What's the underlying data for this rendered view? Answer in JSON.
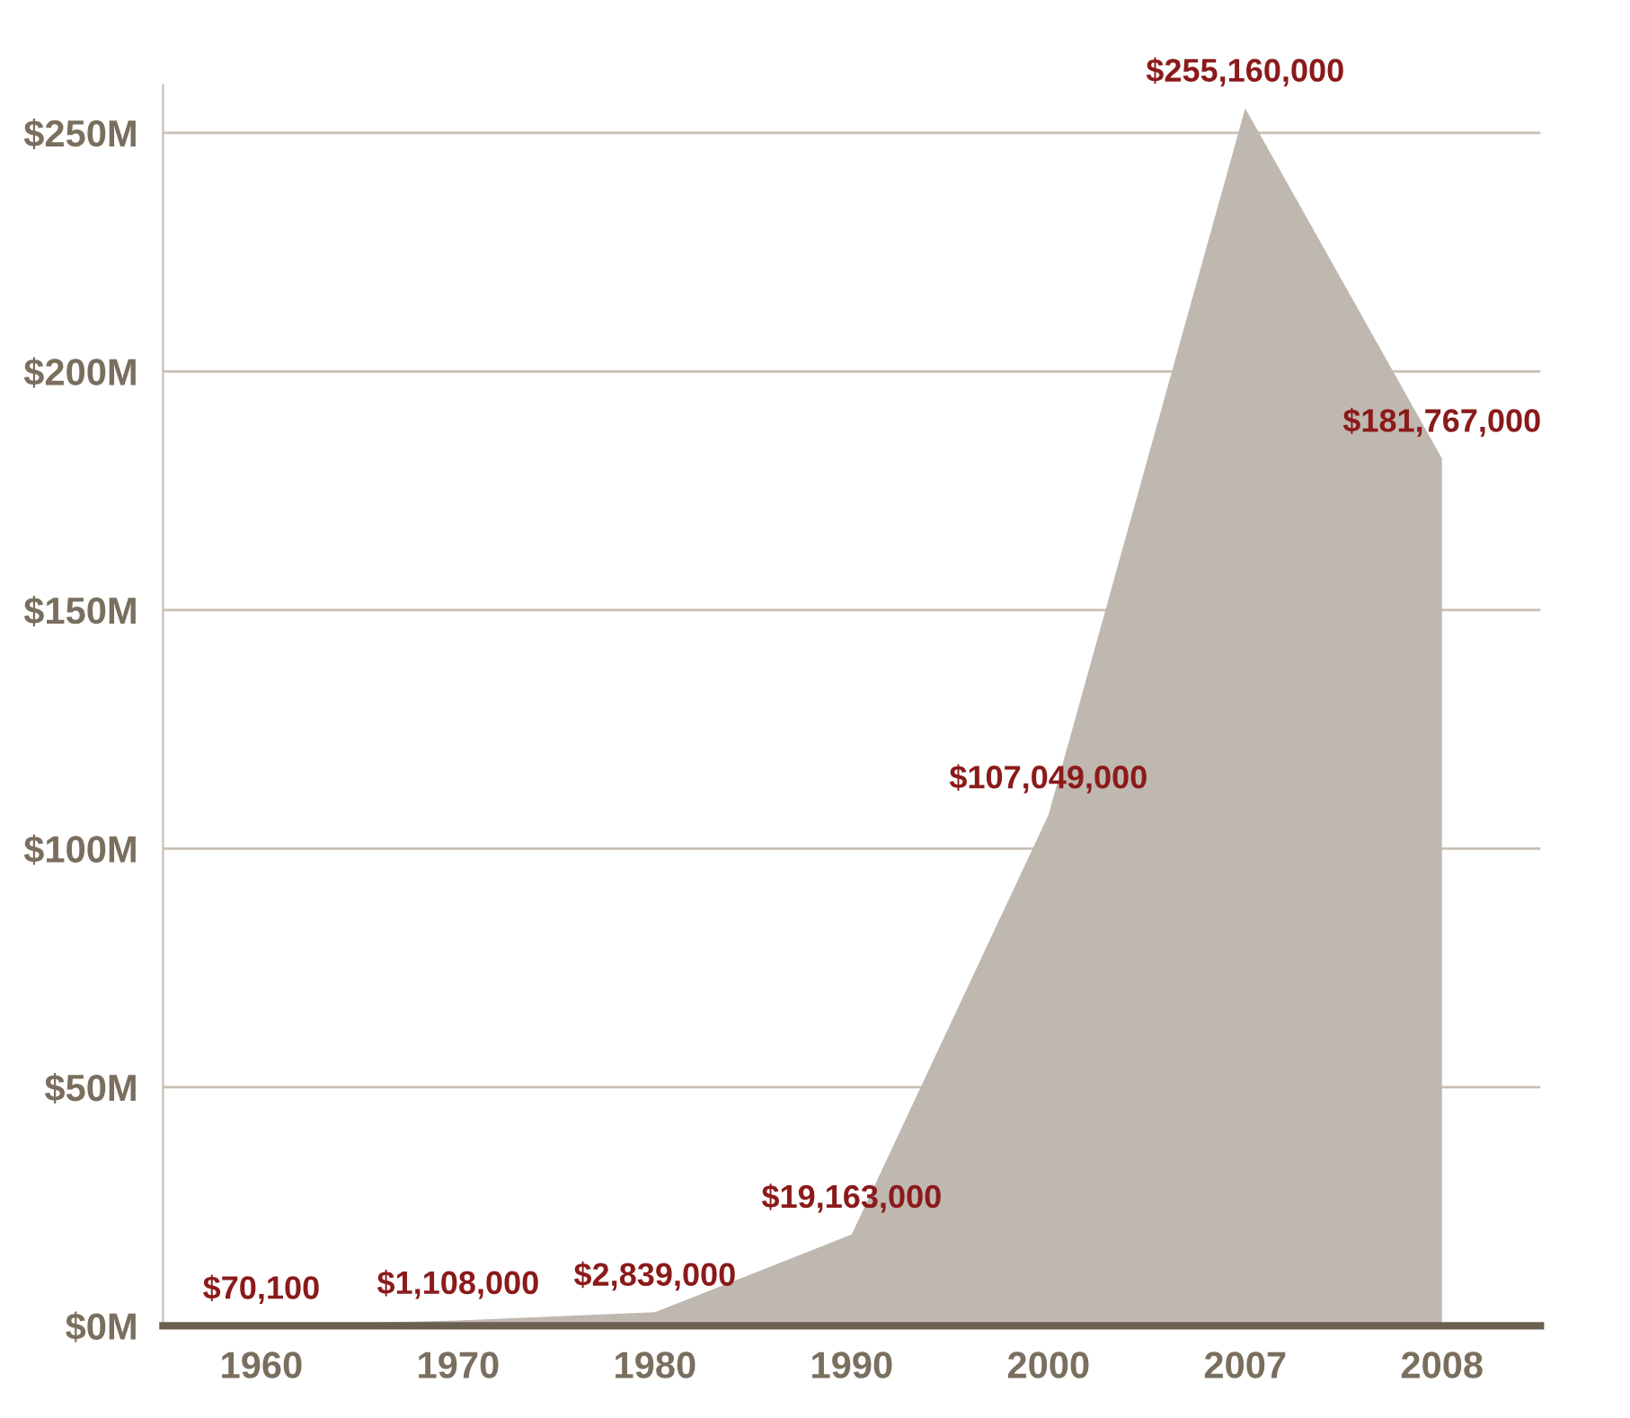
{
  "chart_data": {
    "type": "area",
    "categories": [
      "1960",
      "1970",
      "1980",
      "1990",
      "2000",
      "2007",
      "2008"
    ],
    "series": [
      {
        "color": "#bfb8b0",
        "values": [
          70100,
          1108000,
          2839000,
          19163000,
          107049000,
          255160000,
          181767000
        ],
        "value_labels": [
          "$70,100",
          "$1,108,000",
          "$2,839,000",
          "$19,163,000",
          "$107,049,000",
          "$255,160,000",
          "$181,767,000"
        ]
      }
    ],
    "ylim": [
      0,
      260000000
    ],
    "yticks": [
      {
        "value": 0,
        "label": "$0M"
      },
      {
        "value": 50000000,
        "label": "$50M"
      },
      {
        "value": 100000000,
        "label": "$100M"
      },
      {
        "value": 150000000,
        "label": "$150M"
      },
      {
        "value": 200000000,
        "label": "$200M"
      },
      {
        "value": 250000000,
        "label": "$250M"
      }
    ],
    "grid": "y",
    "legend": false
  }
}
